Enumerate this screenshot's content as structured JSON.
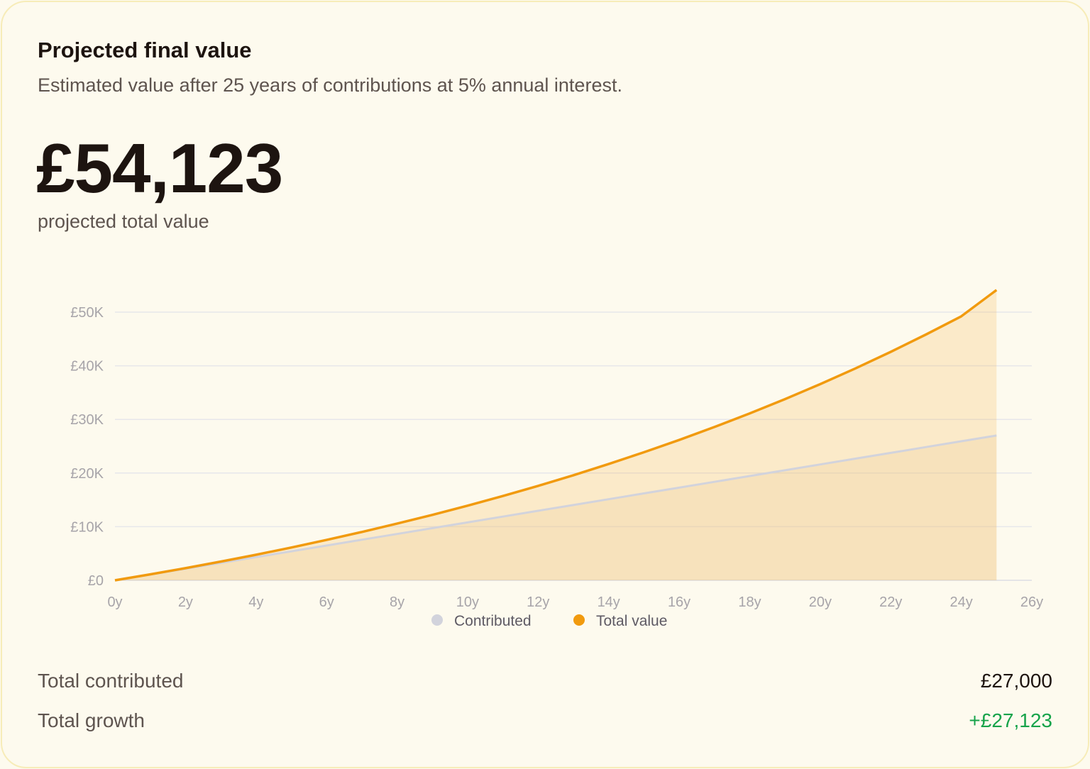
{
  "card": {
    "title": "Projected final value",
    "subtitle": "Estimated value after 25 years of contributions at 5% annual interest.",
    "big_value": "£54,123",
    "big_caption": "projected total value"
  },
  "summary": {
    "contributed_label": "Total contributed",
    "contributed_value": "£27,000",
    "growth_label": "Total growth",
    "growth_value": "+£27,123"
  },
  "colors": {
    "accent": "#f19a0e",
    "contributed": "#d2d3dc",
    "growth_text": "#16a34a"
  },
  "chart_data": {
    "type": "area",
    "title": "",
    "xlabel": "",
    "ylabel": "",
    "x": [
      0,
      1,
      2,
      3,
      4,
      5,
      6,
      7,
      8,
      9,
      10,
      11,
      12,
      13,
      14,
      15,
      16,
      17,
      18,
      19,
      20,
      21,
      22,
      23,
      24,
      25
    ],
    "xlim": [
      0,
      26
    ],
    "ylim": [
      0,
      50000
    ],
    "x_ticks": [
      "0y",
      "2y",
      "4y",
      "6y",
      "8y",
      "10y",
      "12y",
      "14y",
      "16y",
      "18y",
      "20y",
      "22y",
      "24y",
      "26y"
    ],
    "y_ticks": [
      "£0",
      "£10K",
      "£20K",
      "£30K",
      "£40K",
      "£50K"
    ],
    "grid": true,
    "legend": "bottom-center",
    "series": [
      {
        "name": "Contributed",
        "color": "#d2d3dc",
        "values": [
          0,
          1080,
          2160,
          3240,
          4320,
          5400,
          6480,
          7560,
          8640,
          9720,
          10800,
          11880,
          12960,
          14040,
          15120,
          16200,
          17280,
          18360,
          19440,
          20520,
          21600,
          22680,
          23760,
          24840,
          25920,
          27000
        ]
      },
      {
        "name": "Total value",
        "color": "#f19a0e",
        "values": [
          0,
          1106,
          2268,
          3488,
          4768,
          6113,
          7525,
          9007,
          10564,
          12198,
          13914,
          15715,
          17607,
          19594,
          21680,
          23870,
          26169,
          28584,
          31119,
          33781,
          36576,
          39511,
          42592,
          45828,
          49225,
          54123
        ]
      }
    ]
  }
}
